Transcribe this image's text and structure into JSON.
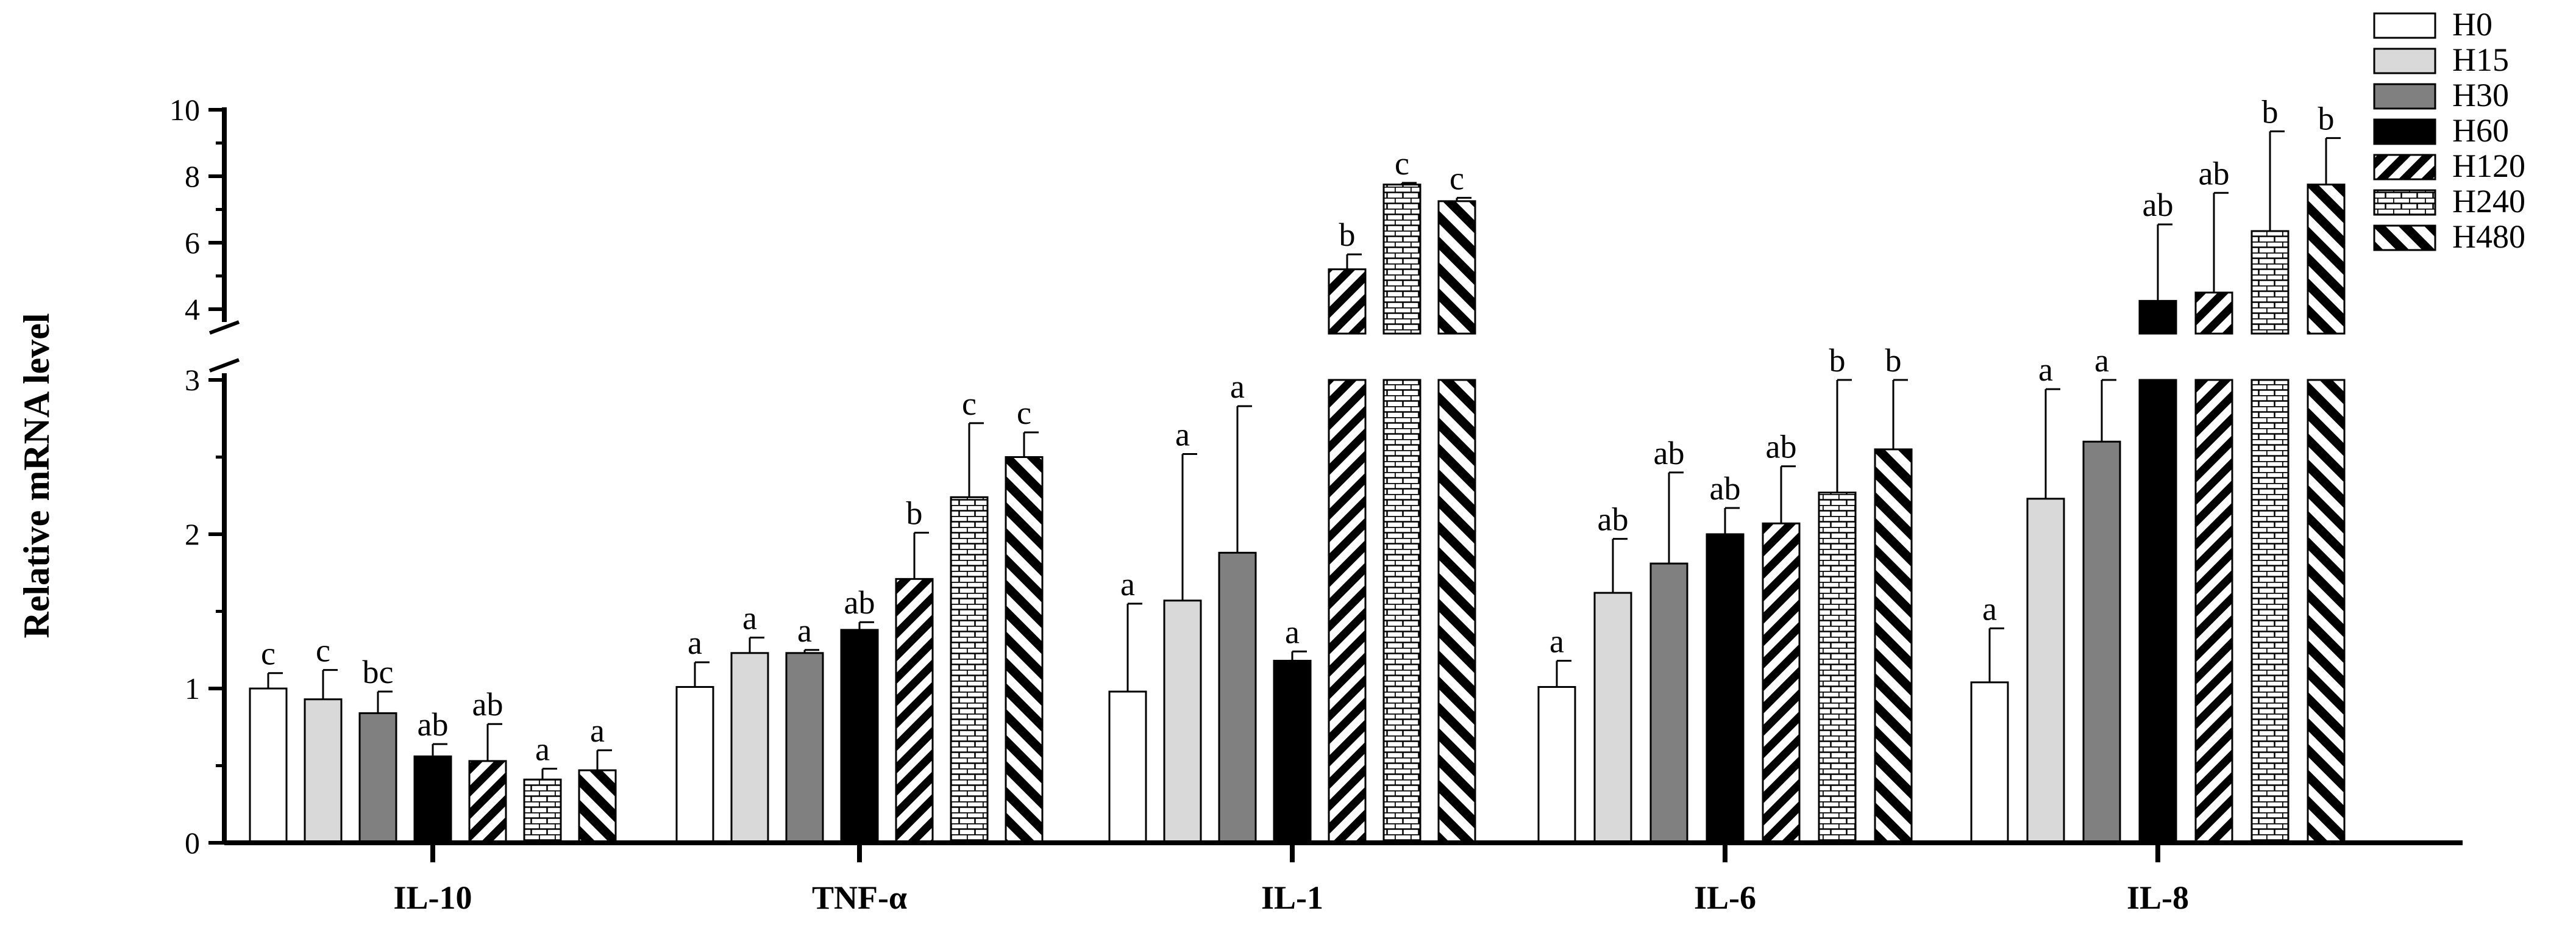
{
  "chart_data": {
    "type": "bar",
    "ylabel": "Relative mRNA level",
    "xlabel": "",
    "y_axis_break": {
      "lower_range": [
        0,
        3
      ],
      "upper_range": [
        3,
        10
      ]
    },
    "lower_ticks": [
      "0",
      "1",
      "2",
      "3"
    ],
    "upper_ticks": [
      "4",
      "6",
      "8",
      "10"
    ],
    "categories": [
      "IL-10",
      "TNF-α",
      "IL-1",
      "IL-6",
      "IL-8"
    ],
    "series": [
      {
        "name": "H0",
        "values": [
          1.0,
          1.01,
          0.98,
          1.01,
          1.04
        ],
        "errors": [
          0.1,
          0.16,
          0.57,
          0.17,
          0.35
        ],
        "labels": [
          "c",
          "a",
          "a",
          "a",
          "a"
        ]
      },
      {
        "name": "H15",
        "values": [
          0.93,
          1.23,
          1.57,
          1.62,
          2.23
        ],
        "errors": [
          0.19,
          0.1,
          0.95,
          0.35,
          0.71
        ],
        "labels": [
          "c",
          "a",
          "a",
          "ab",
          "a"
        ]
      },
      {
        "name": "H30",
        "values": [
          0.84,
          1.23,
          1.88,
          1.81,
          2.6
        ],
        "errors": [
          0.14,
          0.02,
          0.95,
          0.59,
          0.75
        ],
        "labels": [
          "bc",
          "a",
          "a",
          "ab",
          "a"
        ]
      },
      {
        "name": "H60",
        "values": [
          0.56,
          1.38,
          1.18,
          2.0,
          4.25
        ],
        "errors": [
          0.08,
          0.05,
          0.06,
          0.17,
          2.3
        ],
        "labels": [
          "ab",
          "ab",
          "a",
          "ab",
          "ab"
        ]
      },
      {
        "name": "H120",
        "values": [
          0.53,
          1.71,
          5.2,
          2.07,
          4.5
        ],
        "errors": [
          0.24,
          0.3,
          0.45,
          0.37,
          3.0
        ],
        "labels": [
          "ab",
          "b",
          "b",
          "ab",
          "ab"
        ]
      },
      {
        "name": "H240",
        "values": [
          0.41,
          2.24,
          7.75,
          2.27,
          6.35
        ],
        "errors": [
          0.07,
          0.48,
          0.05,
          0.78,
          3.0
        ],
        "labels": [
          "a",
          "c",
          "c",
          "b",
          "b"
        ]
      },
      {
        "name": "H480",
        "values": [
          0.47,
          2.5,
          7.25,
          2.55,
          7.75
        ],
        "errors": [
          0.13,
          0.16,
          0.1,
          0.74,
          1.4
        ],
        "labels": [
          "a",
          "c",
          "c",
          "b",
          "b"
        ]
      }
    ],
    "legend": [
      "H0",
      "H15",
      "H30",
      "H60",
      "H120",
      "H240",
      "H480"
    ],
    "legend_position": "top-right"
  }
}
